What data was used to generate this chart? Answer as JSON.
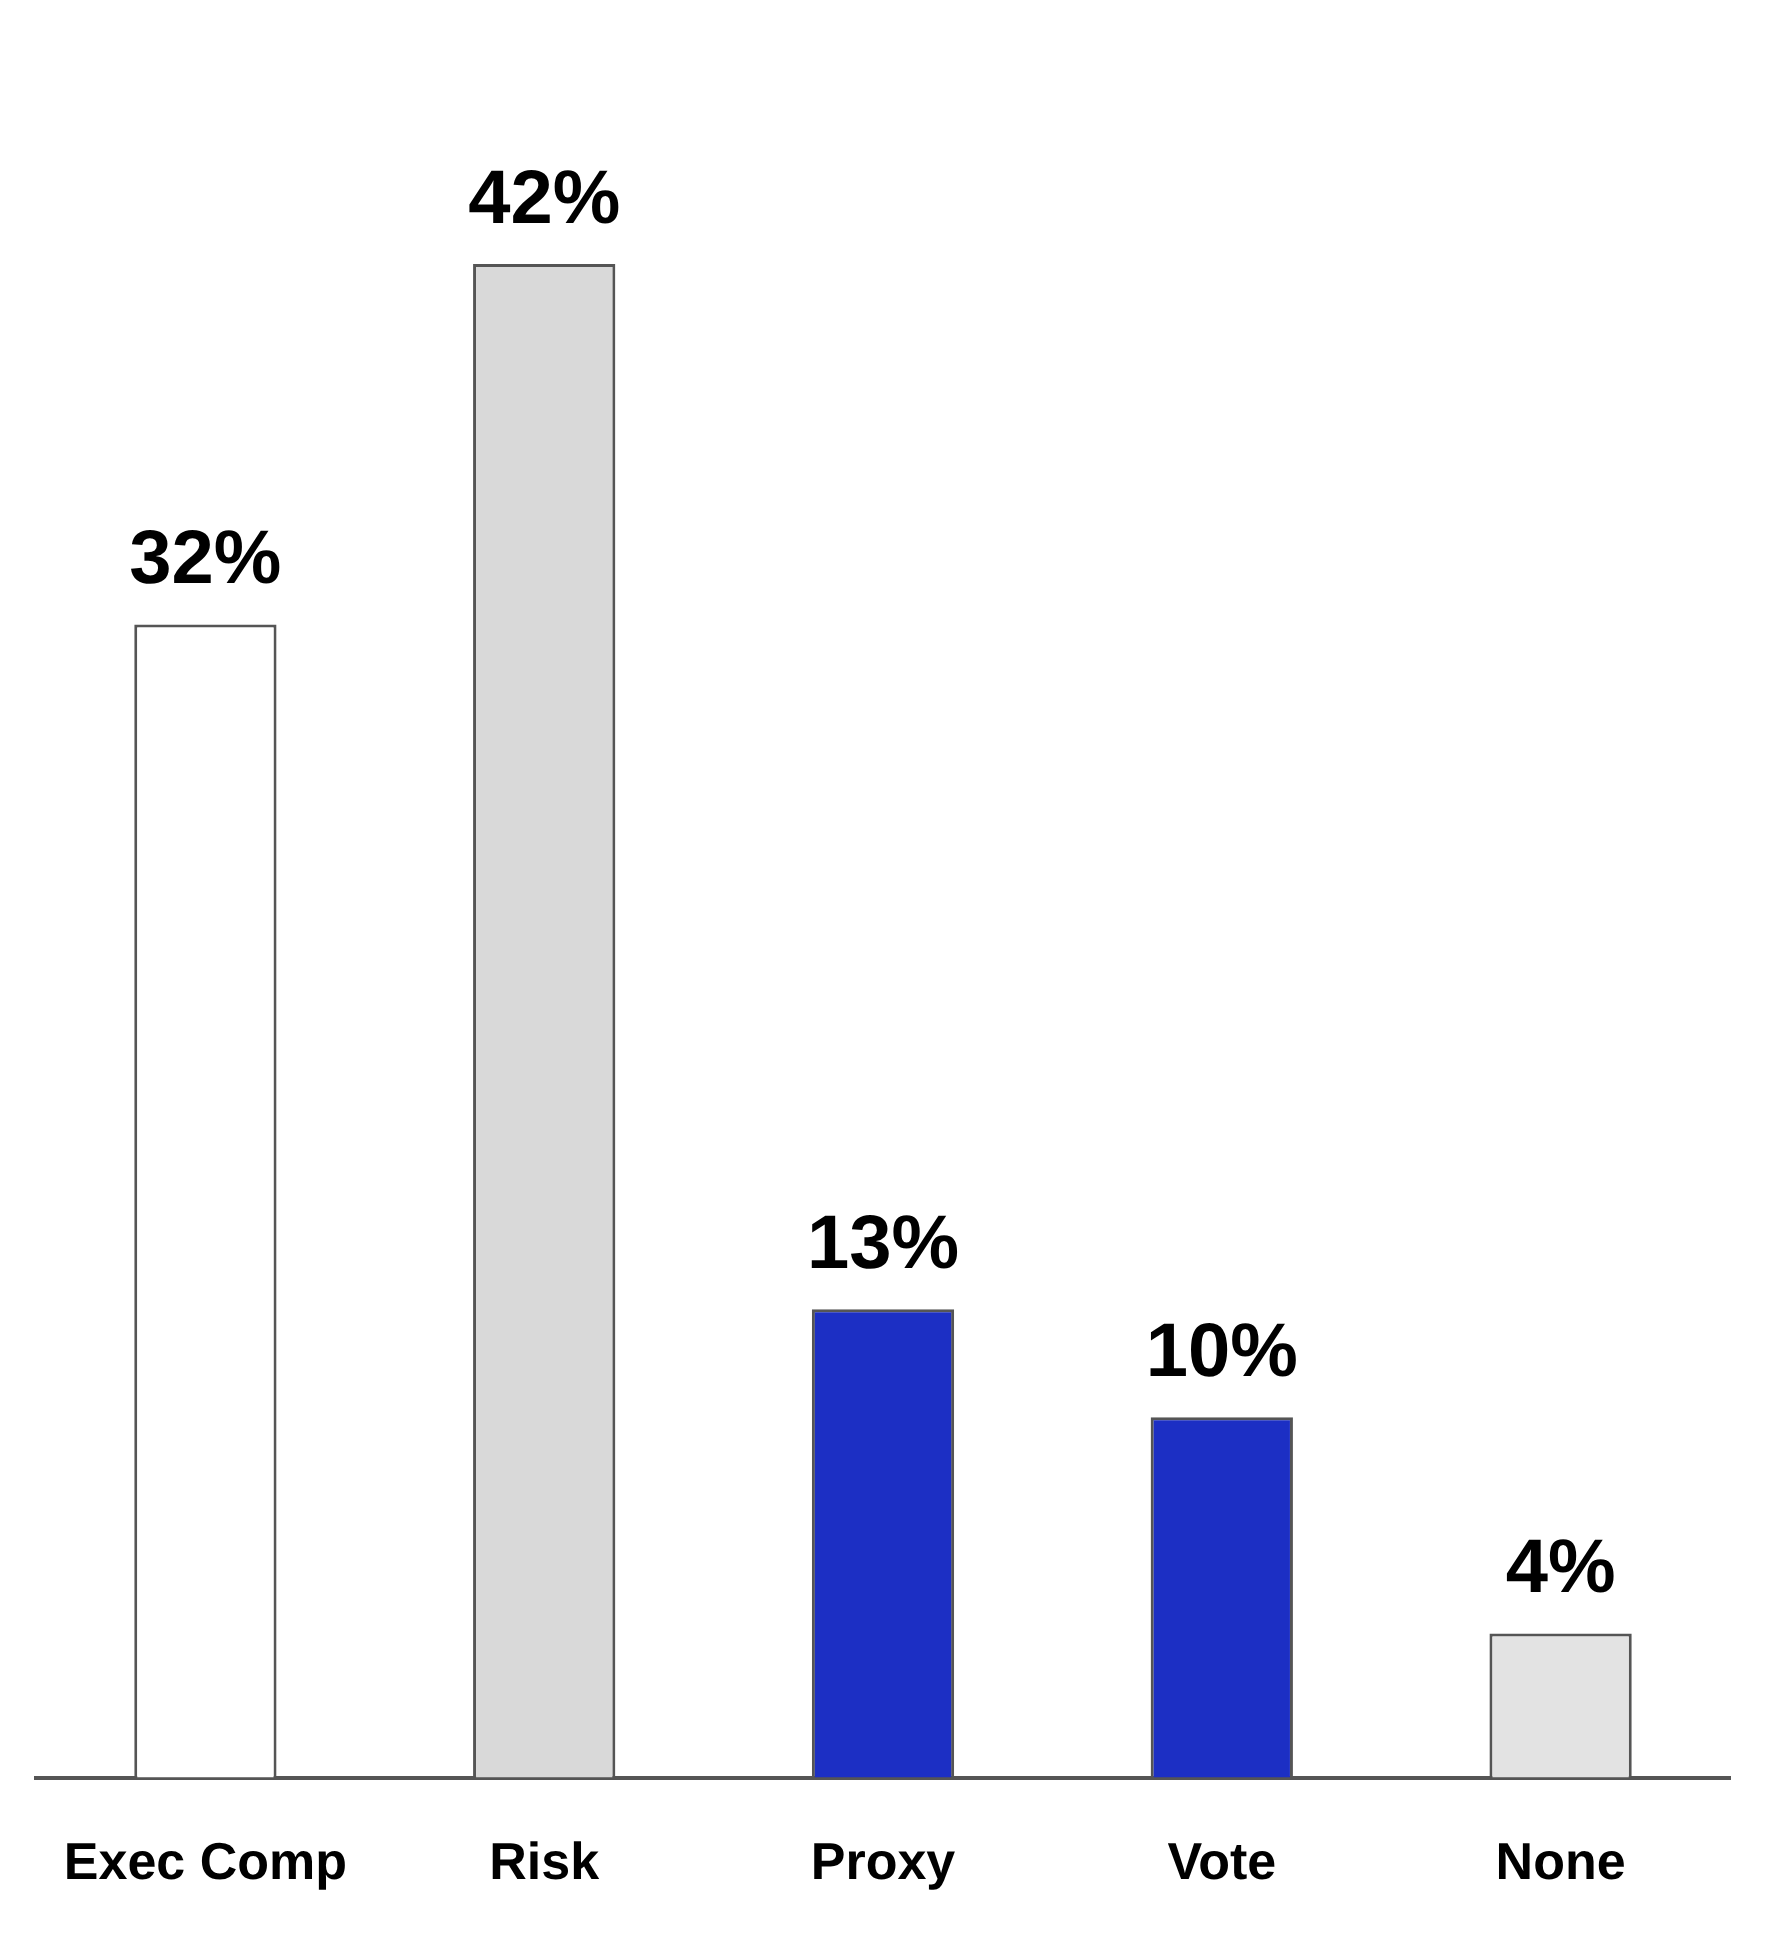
{
  "chart_data": {
    "type": "bar",
    "categories": [
      "Exec Comp",
      "Risk",
      "Proxy",
      "Vote",
      "None"
    ],
    "values": [
      32,
      42,
      13,
      10,
      4
    ],
    "colors": [
      "#ffffff",
      "#d9d9d9",
      "#1c2fc4",
      "#1c2fc4",
      "#e3e3e3"
    ],
    "value_labels": [
      "32%",
      "42%",
      "13%",
      "10%",
      "4%"
    ]
  }
}
